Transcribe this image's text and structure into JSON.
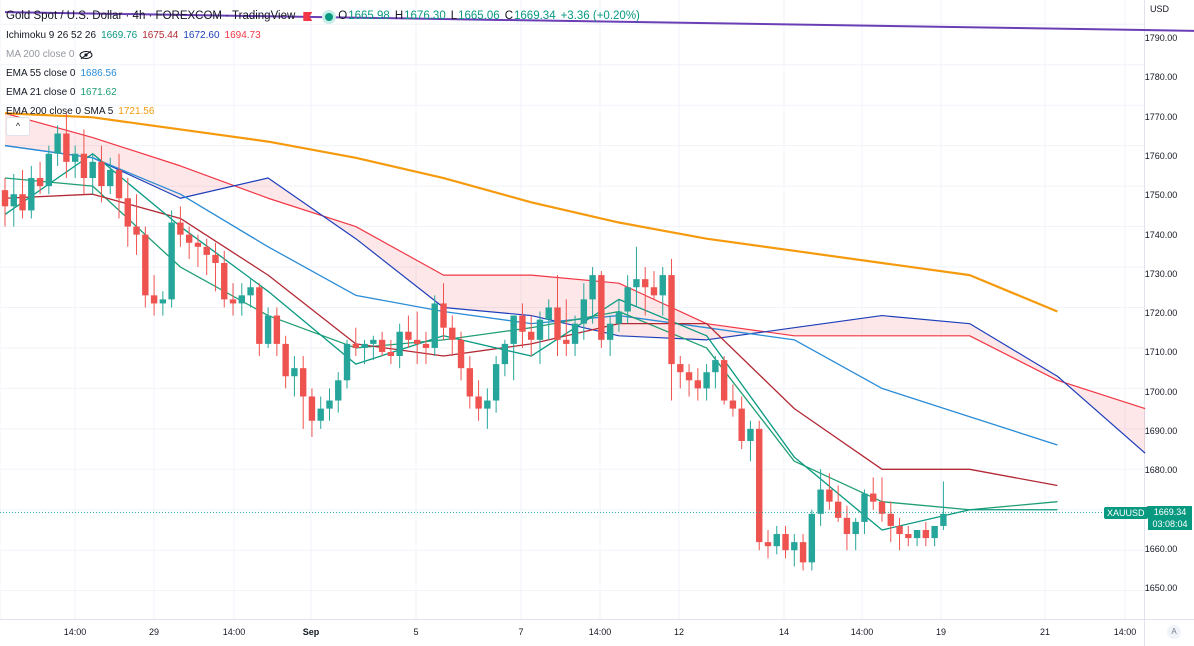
{
  "header": {
    "title": "Gold Spot / U.S. Dollar · 4h · FOREXCOM · TradingView",
    "ohlc": {
      "o_label": "O",
      "o": "1665.98",
      "h_label": "H",
      "h": "1676.30",
      "l_label": "L",
      "l": "1665.06",
      "c_label": "C",
      "c": "1669.34",
      "change": "+3.36 (+0.20%)"
    }
  },
  "indicators": [
    {
      "name": "Ichimoku 9 26 52 26",
      "values": [
        {
          "text": "1669.76",
          "color": "#089981"
        },
        {
          "text": "1675.44",
          "color": "#b22833"
        },
        {
          "text": "1672.60",
          "color": "#1d3fbb"
        },
        {
          "text": "1694.73",
          "color": "#f23645"
        }
      ]
    },
    {
      "name": "MA 200 close 0",
      "dimmed": true,
      "values": []
    },
    {
      "name": "EMA 55 close 0",
      "values": [
        {
          "text": "1686.56",
          "color": "#2a8cd6"
        }
      ]
    },
    {
      "name": "EMA 21 close 0",
      "values": [
        {
          "text": "1671.62",
          "color": "#1e9e73"
        }
      ]
    },
    {
      "name": "EMA 200 close 0 SMA 5",
      "values": [
        {
          "text": "1721.56",
          "color": "#f59a0c"
        }
      ]
    }
  ],
  "price_axis": {
    "currency": "USD",
    "labels": [
      "1790.00",
      "1780.00",
      "1770.00",
      "1760.00",
      "1750.00",
      "1740.00",
      "1730.00",
      "1720.00",
      "1710.00",
      "1700.00",
      "1690.00",
      "1680.00",
      "1670.00",
      "1660.00",
      "1650.00"
    ],
    "symbol_tag": "XAUUSD",
    "last_price": "1669.34",
    "countdown": "03:08:04"
  },
  "time_axis": {
    "labels": [
      "14:00",
      "29",
      "14:00",
      "Sep",
      "5",
      "7",
      "14:00",
      "12",
      "14",
      "14:00",
      "19",
      "21",
      "14:00"
    ]
  },
  "collapse_label": "^",
  "auto_label": "A",
  "colors": {
    "up": "#26a69a",
    "down": "#ef5350",
    "tenkan": "#089981",
    "kijun": "#b22833",
    "spanA": "#1d3fbb",
    "spanB": "#f23645",
    "ema55": "#2a8cd6",
    "ema21": "#1e9e73",
    "ema200": "#f59a0c",
    "ma200": "#6a3fb5"
  },
  "chart_data": {
    "type": "candlestick",
    "title": "Gold Spot / U.S. Dollar 4h",
    "ylim": [
      1643,
      1796
    ],
    "candles": [
      [
        1749,
        1752,
        1740,
        1745
      ],
      [
        1745,
        1753,
        1740,
        1748
      ],
      [
        1748,
        1754,
        1742,
        1744
      ],
      [
        1744,
        1755,
        1742,
        1752
      ],
      [
        1752,
        1756,
        1748,
        1750
      ],
      [
        1750,
        1760,
        1748,
        1758
      ],
      [
        1758,
        1765,
        1755,
        1763
      ],
      [
        1763,
        1768,
        1752,
        1756
      ],
      [
        1756,
        1760,
        1752,
        1758
      ],
      [
        1758,
        1764,
        1748,
        1752
      ],
      [
        1752,
        1758,
        1748,
        1756
      ],
      [
        1756,
        1760,
        1746,
        1750
      ],
      [
        1750,
        1757,
        1748,
        1754
      ],
      [
        1754,
        1758,
        1742,
        1747
      ],
      [
        1747,
        1752,
        1735,
        1740
      ],
      [
        1740,
        1748,
        1733,
        1738
      ],
      [
        1738,
        1740,
        1720,
        1723
      ],
      [
        1723,
        1728,
        1718,
        1721
      ],
      [
        1721,
        1724,
        1718,
        1722
      ],
      [
        1722,
        1744,
        1720,
        1741
      ],
      [
        1741,
        1745,
        1735,
        1738
      ],
      [
        1738,
        1740,
        1732,
        1736
      ],
      [
        1736,
        1738,
        1730,
        1735
      ],
      [
        1735,
        1737,
        1728,
        1733
      ],
      [
        1733,
        1736,
        1724,
        1731
      ],
      [
        1731,
        1734,
        1720,
        1722
      ],
      [
        1722,
        1726,
        1718,
        1721
      ],
      [
        1721,
        1726,
        1718,
        1723
      ],
      [
        1723,
        1727,
        1720,
        1725
      ],
      [
        1725,
        1726,
        1708,
        1711
      ],
      [
        1711,
        1720,
        1710,
        1718
      ],
      [
        1718,
        1720,
        1708,
        1711
      ],
      [
        1711,
        1713,
        1700,
        1703
      ],
      [
        1703,
        1708,
        1698,
        1705
      ],
      [
        1705,
        1708,
        1690,
        1698
      ],
      [
        1698,
        1700,
        1688,
        1692
      ],
      [
        1692,
        1698,
        1690,
        1695
      ],
      [
        1695,
        1700,
        1692,
        1697
      ],
      [
        1697,
        1704,
        1694,
        1702
      ],
      [
        1702,
        1712,
        1700,
        1711
      ],
      [
        1711,
        1715,
        1708,
        1710
      ],
      [
        1710,
        1712,
        1706,
        1711
      ],
      [
        1711,
        1713,
        1707,
        1712
      ],
      [
        1712,
        1714,
        1708,
        1709
      ],
      [
        1709,
        1712,
        1706,
        1708
      ],
      [
        1708,
        1716,
        1705,
        1714
      ],
      [
        1714,
        1718,
        1710,
        1712
      ],
      [
        1712,
        1719,
        1706,
        1711
      ],
      [
        1711,
        1714,
        1706,
        1710
      ],
      [
        1710,
        1723,
        1708,
        1721
      ],
      [
        1721,
        1726,
        1712,
        1715
      ],
      [
        1715,
        1718,
        1708,
        1712
      ],
      [
        1712,
        1714,
        1702,
        1705
      ],
      [
        1705,
        1708,
        1695,
        1698
      ],
      [
        1698,
        1702,
        1692,
        1695
      ],
      [
        1695,
        1700,
        1690,
        1697
      ],
      [
        1697,
        1708,
        1694,
        1706
      ],
      [
        1706,
        1712,
        1703,
        1711
      ],
      [
        1711,
        1718,
        1702,
        1718
      ],
      [
        1718,
        1721,
        1710,
        1714
      ],
      [
        1714,
        1718,
        1708,
        1712
      ],
      [
        1712,
        1719,
        1706,
        1717
      ],
      [
        1717,
        1722,
        1712,
        1720
      ],
      [
        1720,
        1728,
        1708,
        1712
      ],
      [
        1712,
        1722,
        1708,
        1711
      ],
      [
        1711,
        1718,
        1708,
        1716
      ],
      [
        1716,
        1726,
        1712,
        1722
      ],
      [
        1722,
        1730,
        1716,
        1728
      ],
      [
        1728,
        1729,
        1710,
        1712
      ],
      [
        1712,
        1718,
        1708,
        1716
      ],
      [
        1716,
        1722,
        1714,
        1719
      ],
      [
        1719,
        1728,
        1716,
        1725
      ],
      [
        1725,
        1735,
        1720,
        1727
      ],
      [
        1727,
        1730,
        1718,
        1725
      ],
      [
        1725,
        1729,
        1722,
        1723
      ],
      [
        1723,
        1730,
        1718,
        1728
      ],
      [
        1728,
        1732,
        1697,
        1706
      ],
      [
        1706,
        1708,
        1700,
        1704
      ],
      [
        1704,
        1706,
        1698,
        1702
      ],
      [
        1702,
        1705,
        1697,
        1700
      ],
      [
        1700,
        1706,
        1697,
        1704
      ],
      [
        1704,
        1708,
        1700,
        1707
      ],
      [
        1707,
        1708,
        1696,
        1697
      ],
      [
        1697,
        1701,
        1693,
        1695
      ],
      [
        1695,
        1698,
        1685,
        1687
      ],
      [
        1687,
        1692,
        1682,
        1690
      ],
      [
        1690,
        1692,
        1660,
        1662
      ],
      [
        1662,
        1665,
        1658,
        1661
      ],
      [
        1661,
        1666,
        1659,
        1664
      ],
      [
        1664,
        1666,
        1658,
        1660
      ],
      [
        1660,
        1664,
        1656,
        1662
      ],
      [
        1662,
        1664,
        1655,
        1657
      ],
      [
        1657,
        1670,
        1655,
        1669
      ],
      [
        1669,
        1680,
        1666,
        1675
      ],
      [
        1675,
        1679,
        1670,
        1672
      ],
      [
        1672,
        1676,
        1667,
        1668
      ],
      [
        1668,
        1671,
        1660,
        1664
      ],
      [
        1664,
        1668,
        1660,
        1667
      ],
      [
        1667,
        1675,
        1664,
        1674
      ],
      [
        1674,
        1678,
        1670,
        1672
      ],
      [
        1672,
        1678,
        1667,
        1669
      ],
      [
        1669,
        1672,
        1662,
        1666
      ],
      [
        1666,
        1668,
        1660,
        1664
      ],
      [
        1664,
        1666,
        1661,
        1663
      ],
      [
        1663,
        1665,
        1661,
        1665
      ],
      [
        1665,
        1667,
        1661,
        1663
      ],
      [
        1663,
        1666,
        1661,
        1666
      ],
      [
        1666,
        1677,
        1665,
        1669
      ]
    ],
    "series": [
      {
        "name": "MA 200 close 0",
        "color": "#6a3fb5",
        "values": [
          [
            0,
            1793
          ],
          [
            1144,
            1754
          ]
        ]
      },
      {
        "name": "EMA 200 close 0 SMA 5",
        "color": "#f59a0c",
        "values": [
          [
            0,
            1768
          ],
          [
            10,
            1767
          ],
          [
            20,
            1764
          ],
          [
            30,
            1761
          ],
          [
            40,
            1757
          ],
          [
            50,
            1752
          ],
          [
            60,
            1746
          ],
          [
            70,
            1741
          ],
          [
            80,
            1737
          ],
          [
            90,
            1734
          ],
          [
            100,
            1731
          ],
          [
            110,
            1728
          ],
          [
            120,
            1719
          ]
        ]
      },
      {
        "name": "EMA 55 close 0",
        "color": "#2a8cd6",
        "values": [
          [
            0,
            1760
          ],
          [
            10,
            1757
          ],
          [
            20,
            1748
          ],
          [
            30,
            1735
          ],
          [
            40,
            1723
          ],
          [
            50,
            1719
          ],
          [
            60,
            1716
          ],
          [
            70,
            1718
          ],
          [
            80,
            1715
          ],
          [
            90,
            1712
          ],
          [
            100,
            1700
          ],
          [
            110,
            1693
          ],
          [
            120,
            1686
          ]
        ]
      },
      {
        "name": "EMA 21 close 0",
        "color": "#1e9e73",
        "values": [
          [
            0,
            1752
          ],
          [
            10,
            1750
          ],
          [
            20,
            1730
          ],
          [
            30,
            1718
          ],
          [
            40,
            1710
          ],
          [
            50,
            1712
          ],
          [
            60,
            1715
          ],
          [
            70,
            1719
          ],
          [
            80,
            1710
          ],
          [
            90,
            1682
          ],
          [
            100,
            1672
          ],
          [
            110,
            1670
          ],
          [
            120,
            1672
          ]
        ]
      },
      {
        "name": "Tenkan",
        "color": "#089981",
        "values": [
          [
            0,
            1743
          ],
          [
            10,
            1758
          ],
          [
            20,
            1740
          ],
          [
            30,
            1724
          ],
          [
            40,
            1706
          ],
          [
            50,
            1713
          ],
          [
            60,
            1708
          ],
          [
            70,
            1722
          ],
          [
            80,
            1713
          ],
          [
            90,
            1683
          ],
          [
            100,
            1665
          ],
          [
            110,
            1670
          ],
          [
            120,
            1670
          ]
        ]
      },
      {
        "name": "Kijun",
        "color": "#b22833",
        "values": [
          [
            0,
            1747
          ],
          [
            10,
            1748
          ],
          [
            20,
            1742
          ],
          [
            30,
            1728
          ],
          [
            40,
            1711
          ],
          [
            50,
            1708
          ],
          [
            60,
            1711
          ],
          [
            70,
            1716
          ],
          [
            80,
            1716
          ],
          [
            90,
            1695
          ],
          [
            100,
            1680
          ],
          [
            110,
            1680
          ],
          [
            120,
            1676
          ]
        ]
      },
      {
        "name": "Senkou Span A",
        "color": "#1d3fbb",
        "values": [
          [
            0,
            1760
          ],
          [
            10,
            1757
          ],
          [
            20,
            1747
          ],
          [
            30,
            1752
          ],
          [
            40,
            1737
          ],
          [
            50,
            1720
          ],
          [
            60,
            1718
          ],
          [
            70,
            1713
          ],
          [
            80,
            1712
          ],
          [
            90,
            1715
          ],
          [
            100,
            1718
          ],
          [
            110,
            1716
          ],
          [
            120,
            1703
          ],
          [
            130,
            1684
          ]
        ]
      },
      {
        "name": "Senkou Span B",
        "color": "#f23645",
        "values": [
          [
            0,
            1768
          ],
          [
            10,
            1762
          ],
          [
            20,
            1755
          ],
          [
            30,
            1747
          ],
          [
            40,
            1740
          ],
          [
            50,
            1728
          ],
          [
            60,
            1728
          ],
          [
            70,
            1726
          ],
          [
            80,
            1716
          ],
          [
            90,
            1713
          ],
          [
            100,
            1713
          ],
          [
            110,
            1713
          ],
          [
            120,
            1702
          ],
          [
            130,
            1695
          ]
        ]
      }
    ]
  }
}
